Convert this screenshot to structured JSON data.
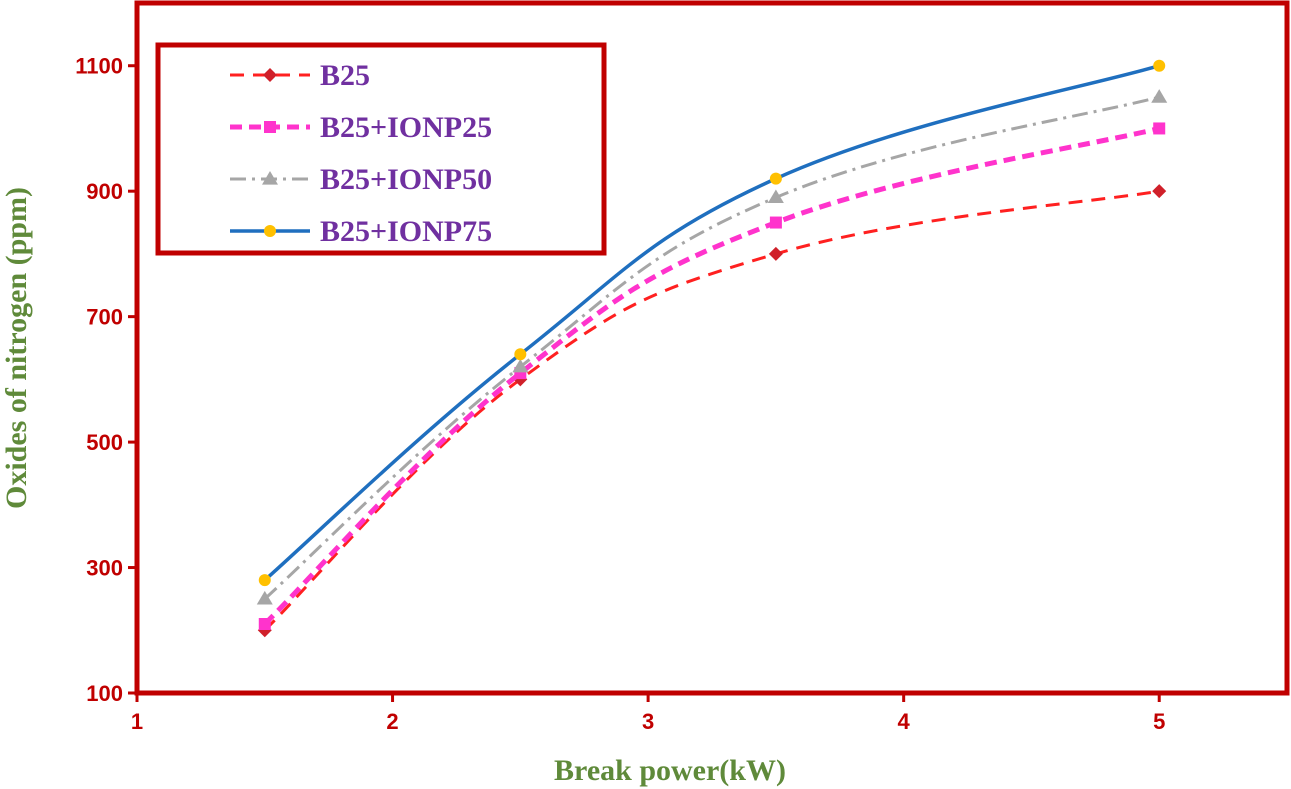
{
  "chart_data": {
    "type": "line",
    "title": "",
    "xlabel": "Break power(kW)",
    "ylabel": "Oxides of nitrogen (ppm)",
    "xlim": [
      1,
      5.5
    ],
    "ylim": [
      100,
      1200
    ],
    "xticks": [
      "1",
      "2",
      "3",
      "4",
      "5"
    ],
    "yticks": [
      "100",
      "300",
      "500",
      "700",
      "900",
      "1100"
    ],
    "grid": false,
    "legend_position": "top-left",
    "smooth": true,
    "colors": {
      "frame": "#c00000",
      "tick_text": "#c00000",
      "axis_title": "#5f8a3a",
      "legend_text": "#7030a0"
    },
    "x": [
      1.5,
      2.5,
      3.5,
      5
    ],
    "series": [
      {
        "name": "B25",
        "values": [
          200,
          600,
          800,
          900
        ],
        "color": "#ff2020",
        "marker": "diamond",
        "marker_color": "#d0202a",
        "dash": "dash"
      },
      {
        "name": "B25+IONP25",
        "values": [
          210,
          610,
          850,
          1000
        ],
        "color": "#ff33cc",
        "marker": "square",
        "marker_color": "#ff33cc",
        "dash": "dash-bold"
      },
      {
        "name": "B25+IONP50",
        "values": [
          250,
          620,
          890,
          1050
        ],
        "color": "#a6a6a6",
        "marker": "triangle",
        "marker_color": "#a6a6a6",
        "dash": "dash-dot"
      },
      {
        "name": "B25+IONP75",
        "values": [
          280,
          640,
          920,
          1100
        ],
        "color": "#1f6fbf",
        "marker": "circle",
        "marker_color": "#ffc000",
        "dash": "solid"
      }
    ]
  }
}
